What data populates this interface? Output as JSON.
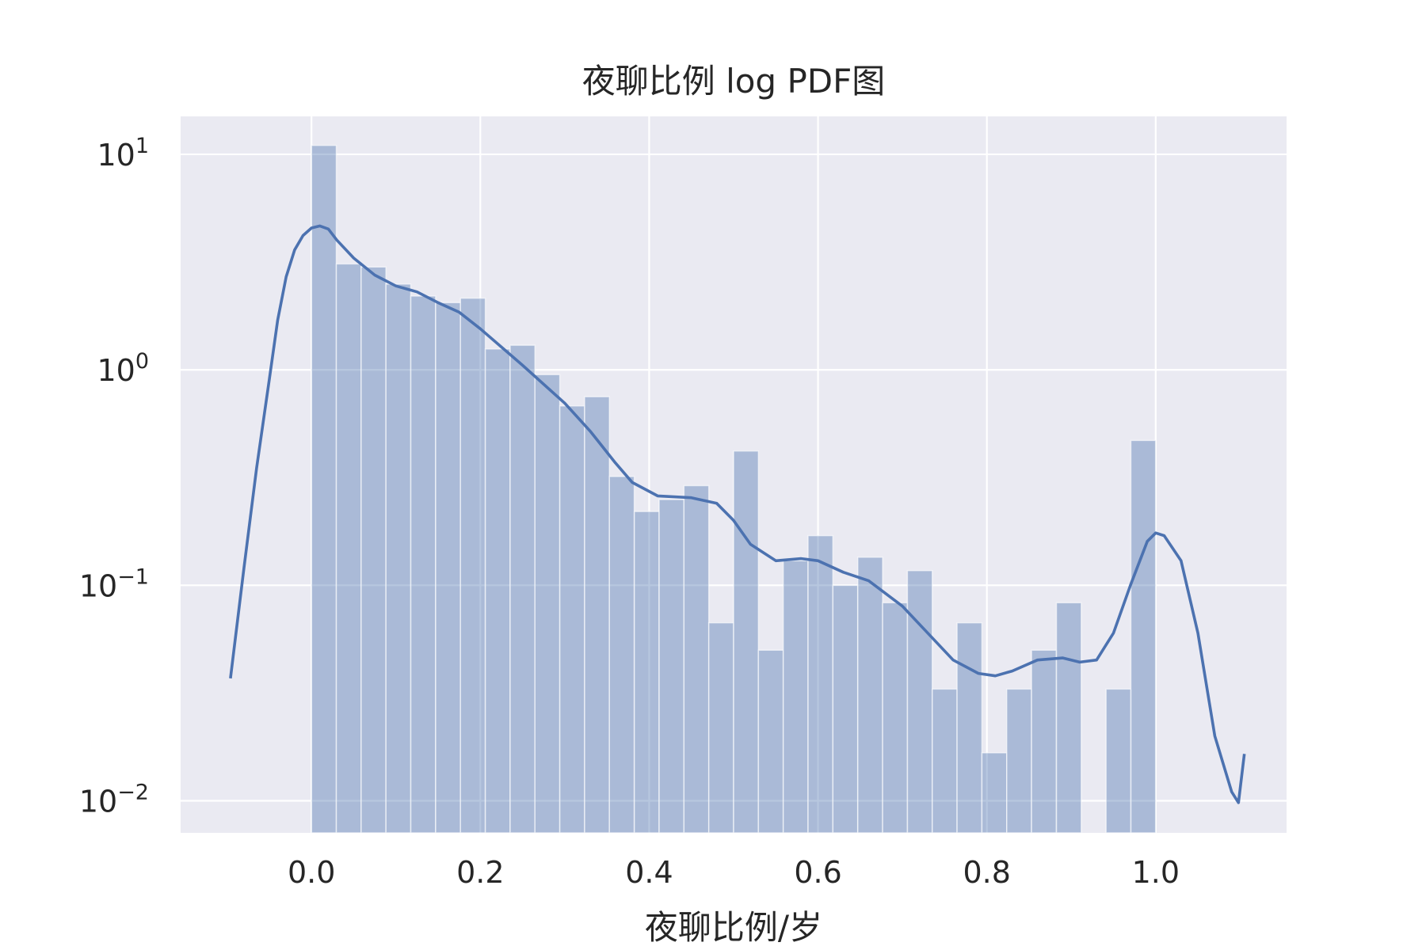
{
  "chart_data": {
    "type": "bar",
    "title": "夜聊比例 log PDF图",
    "xlabel": "夜聊比例/岁",
    "ylabel": "",
    "xlim": [
      -0.155,
      1.155
    ],
    "ylim": [
      0.0071,
      15.0
    ],
    "yscale": "log",
    "grid": true,
    "legend": "none",
    "colors": {
      "background": "#eaeaf2",
      "grid": "#ffffff",
      "bars": "#4c72b0",
      "kde": "#4c72b0",
      "text": "#262626"
    },
    "x_ticks": [
      {
        "value": 0.0,
        "label": "0.0"
      },
      {
        "value": 0.2,
        "label": "0.2"
      },
      {
        "value": 0.4,
        "label": "0.4"
      },
      {
        "value": 0.6,
        "label": "0.6"
      },
      {
        "value": 0.8,
        "label": "0.8"
      },
      {
        "value": 1.0,
        "label": "1.0"
      }
    ],
    "y_ticks": [
      {
        "value": 10,
        "base": "10",
        "exp": "1"
      },
      {
        "value": 1,
        "base": "10",
        "exp": "0"
      },
      {
        "value": 0.1,
        "base": "10",
        "exp": "−1"
      },
      {
        "value": 0.01,
        "base": "10",
        "exp": "−2"
      }
    ],
    "histogram": {
      "bin_width": 0.02941,
      "bins": [
        {
          "x0": 0.0,
          "value": 11.0
        },
        {
          "x0": 0.0294,
          "value": 3.1
        },
        {
          "x0": 0.0588,
          "value": 3.0
        },
        {
          "x0": 0.0882,
          "value": 2.5
        },
        {
          "x0": 0.1176,
          "value": 2.2
        },
        {
          "x0": 0.1471,
          "value": 2.05
        },
        {
          "x0": 0.1765,
          "value": 2.15
        },
        {
          "x0": 0.2059,
          "value": 1.25
        },
        {
          "x0": 0.2353,
          "value": 1.3
        },
        {
          "x0": 0.2647,
          "value": 0.95
        },
        {
          "x0": 0.2941,
          "value": 0.68
        },
        {
          "x0": 0.3235,
          "value": 0.75
        },
        {
          "x0": 0.3529,
          "value": 0.32
        },
        {
          "x0": 0.3824,
          "value": 0.22
        },
        {
          "x0": 0.4118,
          "value": 0.25
        },
        {
          "x0": 0.4412,
          "value": 0.29
        },
        {
          "x0": 0.4706,
          "value": 0.067
        },
        {
          "x0": 0.5,
          "value": 0.42
        },
        {
          "x0": 0.5294,
          "value": 0.05
        },
        {
          "x0": 0.5588,
          "value": 0.13
        },
        {
          "x0": 0.5882,
          "value": 0.17
        },
        {
          "x0": 0.6176,
          "value": 0.1
        },
        {
          "x0": 0.6471,
          "value": 0.135
        },
        {
          "x0": 0.6765,
          "value": 0.083
        },
        {
          "x0": 0.7059,
          "value": 0.117
        },
        {
          "x0": 0.7353,
          "value": 0.033
        },
        {
          "x0": 0.7647,
          "value": 0.067
        },
        {
          "x0": 0.7941,
          "value": 0.0167
        },
        {
          "x0": 0.8235,
          "value": 0.033
        },
        {
          "x0": 0.8529,
          "value": 0.05
        },
        {
          "x0": 0.8824,
          "value": 0.083
        },
        {
          "x0": 0.9118,
          "value": 0
        },
        {
          "x0": 0.9412,
          "value": 0.033
        },
        {
          "x0": 0.9706,
          "value": 0.47
        }
      ]
    },
    "kde": {
      "x": [
        -0.096,
        -0.08,
        -0.065,
        -0.05,
        -0.04,
        -0.03,
        -0.02,
        -0.01,
        0.0,
        0.01,
        0.02,
        0.03,
        0.05,
        0.075,
        0.1,
        0.125,
        0.15,
        0.175,
        0.2,
        0.25,
        0.3,
        0.33,
        0.36,
        0.38,
        0.41,
        0.45,
        0.48,
        0.5,
        0.52,
        0.55,
        0.58,
        0.6,
        0.63,
        0.66,
        0.7,
        0.73,
        0.76,
        0.79,
        0.81,
        0.83,
        0.86,
        0.89,
        0.91,
        0.93,
        0.95,
        0.97,
        0.99,
        1.0,
        1.01,
        1.03,
        1.05,
        1.07,
        1.09,
        1.098,
        1.105
      ],
      "y": [
        0.037,
        0.12,
        0.35,
        0.9,
        1.7,
        2.7,
        3.6,
        4.2,
        4.55,
        4.65,
        4.5,
        4.0,
        3.3,
        2.75,
        2.45,
        2.3,
        2.05,
        1.85,
        1.55,
        1.05,
        0.7,
        0.52,
        0.37,
        0.3,
        0.26,
        0.255,
        0.24,
        0.2,
        0.155,
        0.13,
        0.133,
        0.13,
        0.115,
        0.105,
        0.08,
        0.06,
        0.045,
        0.039,
        0.038,
        0.04,
        0.045,
        0.046,
        0.044,
        0.045,
        0.06,
        0.1,
        0.16,
        0.175,
        0.17,
        0.13,
        0.06,
        0.02,
        0.011,
        0.0098,
        0.0165
      ]
    }
  }
}
